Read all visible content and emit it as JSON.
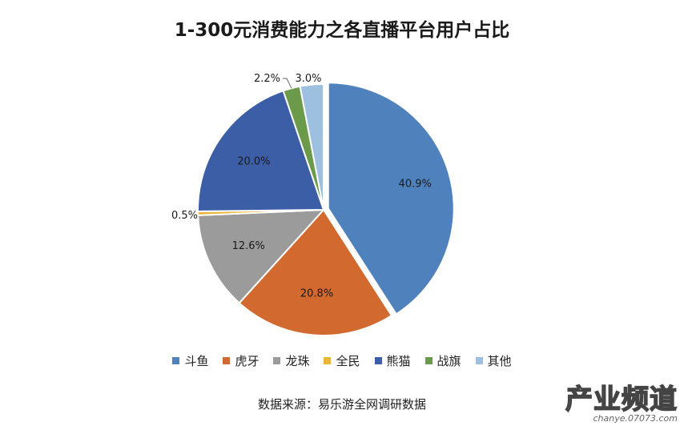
{
  "chart_data": {
    "type": "pie",
    "title": "1-300元消费能力之各直播平台用户占比",
    "categories": [
      "斗鱼",
      "虎牙",
      "龙珠",
      "全民",
      "熊猫",
      "战旗",
      "其他"
    ],
    "values": [
      40.9,
      20.8,
      12.6,
      0.5,
      20.0,
      2.2,
      3.0
    ],
    "labels": [
      "40.9%",
      "20.8%",
      "12.6%",
      "0.5%",
      "20.0%",
      "2.2%",
      "3.0%"
    ],
    "colors": [
      "#4f81bd",
      "#d2692f",
      "#9b9b9b",
      "#e8b73a",
      "#3c5ea7",
      "#6a9a4a",
      "#9dbfe0"
    ],
    "exploded": "斗鱼",
    "start": "12 o'clock, clockwise",
    "legend_position": "bottom"
  },
  "source": "数据来源：易乐游全网调研数据",
  "watermark": {
    "main": "产业频道",
    "sub": "chanye.07073.com"
  }
}
